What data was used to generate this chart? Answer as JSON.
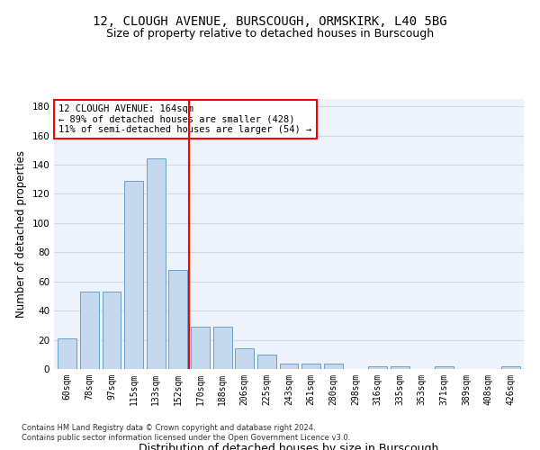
{
  "title": "12, CLOUGH AVENUE, BURSCOUGH, ORMSKIRK, L40 5BG",
  "subtitle": "Size of property relative to detached houses in Burscough",
  "xlabel": "Distribution of detached houses by size in Burscough",
  "ylabel": "Number of detached properties",
  "categories": [
    "60sqm",
    "78sqm",
    "97sqm",
    "115sqm",
    "133sqm",
    "152sqm",
    "170sqm",
    "188sqm",
    "206sqm",
    "225sqm",
    "243sqm",
    "261sqm",
    "280sqm",
    "298sqm",
    "316sqm",
    "335sqm",
    "353sqm",
    "371sqm",
    "389sqm",
    "408sqm",
    "426sqm"
  ],
  "values": [
    21,
    53,
    53,
    129,
    144,
    68,
    29,
    29,
    14,
    10,
    4,
    4,
    4,
    0,
    2,
    2,
    0,
    2,
    0,
    0,
    2
  ],
  "bar_color": "#c5d8ed",
  "bar_edge_color": "#6aa0c7",
  "vline_color": "red",
  "annotation_line1": "12 CLOUGH AVENUE: 164sqm",
  "annotation_line2": "← 89% of detached houses are smaller (428)",
  "annotation_line3": "11% of semi-detached houses are larger (54) →",
  "ylim": [
    0,
    185
  ],
  "yticks": [
    0,
    20,
    40,
    60,
    80,
    100,
    120,
    140,
    160,
    180
  ],
  "footer1": "Contains HM Land Registry data © Crown copyright and database right 2024.",
  "footer2": "Contains public sector information licensed under the Open Government Licence v3.0.",
  "bg_color": "#eef2fa",
  "grid_color": "#d0d8e8"
}
